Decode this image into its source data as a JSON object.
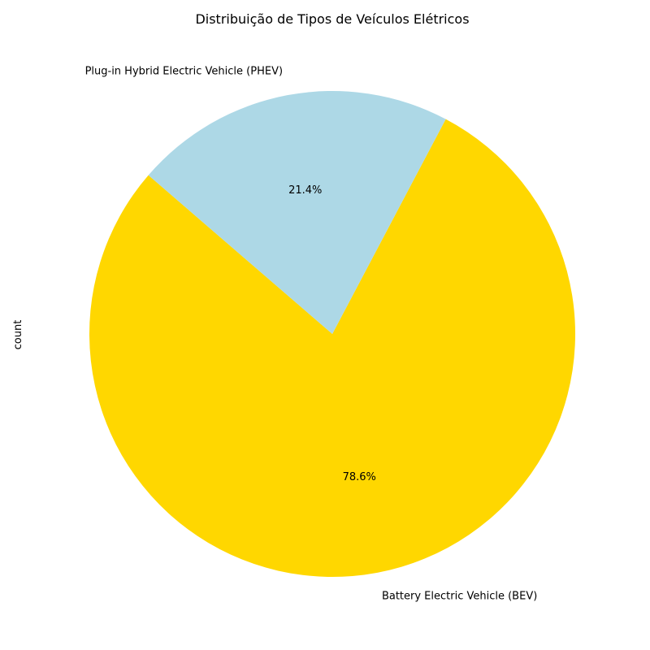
{
  "chart_data": {
    "type": "pie",
    "title": "Distribuição de Tipos de Veículos Elétricos",
    "ylabel": "count",
    "slices": [
      {
        "label": "Battery Electric Vehicle (BEV)",
        "percent": 78.6,
        "percent_label": "78.6%",
        "color": "#FFD700"
      },
      {
        "label": "Plug-in Hybrid Electric Vehicle (PHEV)",
        "percent": 21.4,
        "percent_label": "21.4%",
        "color": "#ADD8E6"
      }
    ],
    "legend": "none"
  }
}
